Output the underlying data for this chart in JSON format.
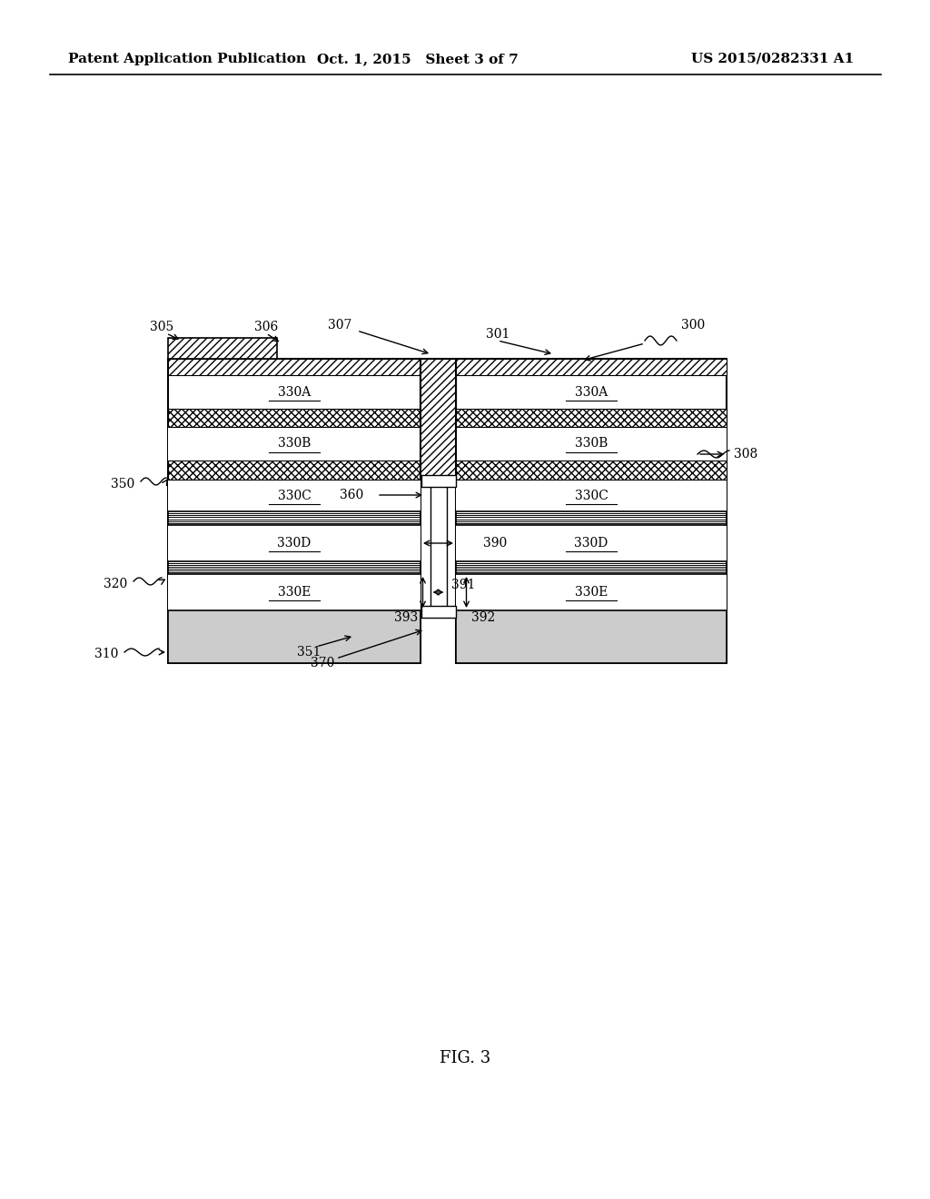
{
  "bg_color": "#ffffff",
  "text_color": "#000000",
  "header_left": "Patent Application Publication",
  "header_mid": "Oct. 1, 2015   Sheet 3 of 7",
  "header_right": "US 2015/0282331 A1",
  "fig_label": "FIG. 3",
  "lw_main": 1.5,
  "lw_thin": 1.0,
  "label_fs": 10,
  "ref_fs": 10,
  "header_fs": 11
}
